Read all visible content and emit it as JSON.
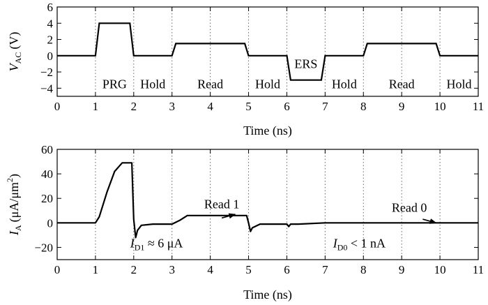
{
  "chart_data": [
    {
      "type": "line",
      "xlabel": "Time (ns)",
      "ylabel_symbol": "V",
      "ylabel_subscript": "AC",
      "ylabel_unit": "(V)",
      "xlim": [
        0,
        11
      ],
      "ylim": [
        -5,
        6
      ],
      "xticks": [
        0,
        1,
        2,
        3,
        4,
        5,
        6,
        7,
        8,
        9,
        10,
        11
      ],
      "yticks": [
        -4,
        -2,
        0,
        2,
        4,
        6
      ],
      "grid": "vertical-dotted",
      "series": [
        {
          "x": [
            0,
            1.0,
            1.1,
            1.9,
            2.0,
            3.0,
            3.1,
            4.9,
            5.0,
            6.0,
            6.1,
            6.9,
            7.0,
            8.0,
            8.1,
            9.9,
            10.0,
            11
          ],
          "y": [
            0,
            0,
            4,
            4,
            0,
            0,
            1.5,
            1.5,
            0,
            0,
            -3,
            -3,
            0,
            0,
            1.5,
            1.5,
            0,
            0
          ]
        }
      ],
      "phase_labels": [
        {
          "text": "PRG",
          "x": 1.5,
          "y": -3.5
        },
        {
          "text": "Hold",
          "x": 2.5,
          "y": -3.5
        },
        {
          "text": "Read",
          "x": 4.0,
          "y": -3.5
        },
        {
          "text": "Hold",
          "x": 5.5,
          "y": -3.5
        },
        {
          "text": "ERS",
          "x": 6.5,
          "y": -1.0
        },
        {
          "text": "Hold",
          "x": 7.5,
          "y": -3.5
        },
        {
          "text": "Read",
          "x": 9.0,
          "y": -3.5
        },
        {
          "text": "Hold",
          "x": 10.5,
          "y": -3.5
        }
      ]
    },
    {
      "type": "line",
      "xlabel": "Time (ns)",
      "ylabel_symbol": "I",
      "ylabel_subscript": "A",
      "ylabel_unit": "(μA/μm",
      "ylabel_sup": "2",
      "ylabel_close": ")",
      "xlim": [
        0,
        11
      ],
      "ylim": [
        -30,
        60
      ],
      "xticks": [
        0,
        1,
        2,
        3,
        4,
        5,
        6,
        7,
        8,
        9,
        10,
        11
      ],
      "yticks": [
        -20,
        0,
        20,
        40,
        60
      ],
      "grid": "vertical-dotted",
      "series": [
        {
          "x": [
            0,
            1.0,
            1.1,
            1.3,
            1.5,
            1.7,
            1.95,
            2.0,
            2.05,
            2.1,
            2.2,
            2.5,
            3.0,
            3.2,
            3.4,
            4.95,
            5.0,
            5.05,
            5.1,
            5.3,
            6.0,
            6.05,
            6.1,
            6.3,
            7.0,
            11
          ],
          "y": [
            0,
            0,
            5,
            25,
            42,
            49,
            49,
            3,
            -12,
            -6,
            -2,
            -1,
            -1,
            2,
            6,
            6,
            0,
            -7,
            -4,
            -1,
            -1,
            -3,
            -1,
            -1,
            0,
            0
          ]
        }
      ],
      "annotations": [
        {
          "text": "Read 1",
          "x": 4.3,
          "y": 12
        },
        {
          "text": "Read 0",
          "x": 9.2,
          "y": 9
        },
        {
          "id": "id1",
          "symbol": "I",
          "sub": "D1",
          "rest": " ≈ 6 μA",
          "x": 3.0,
          "y": -20
        },
        {
          "id": "id0",
          "symbol": "I",
          "sub": "D0",
          "rest": " < 1 nA",
          "x": 8.3,
          "y": -20
        }
      ],
      "arrows": [
        {
          "from": [
            4.3,
            4
          ],
          "to": [
            4.65,
            7
          ]
        },
        {
          "from": [
            9.55,
            3
          ],
          "to": [
            9.9,
            0
          ]
        }
      ]
    }
  ]
}
